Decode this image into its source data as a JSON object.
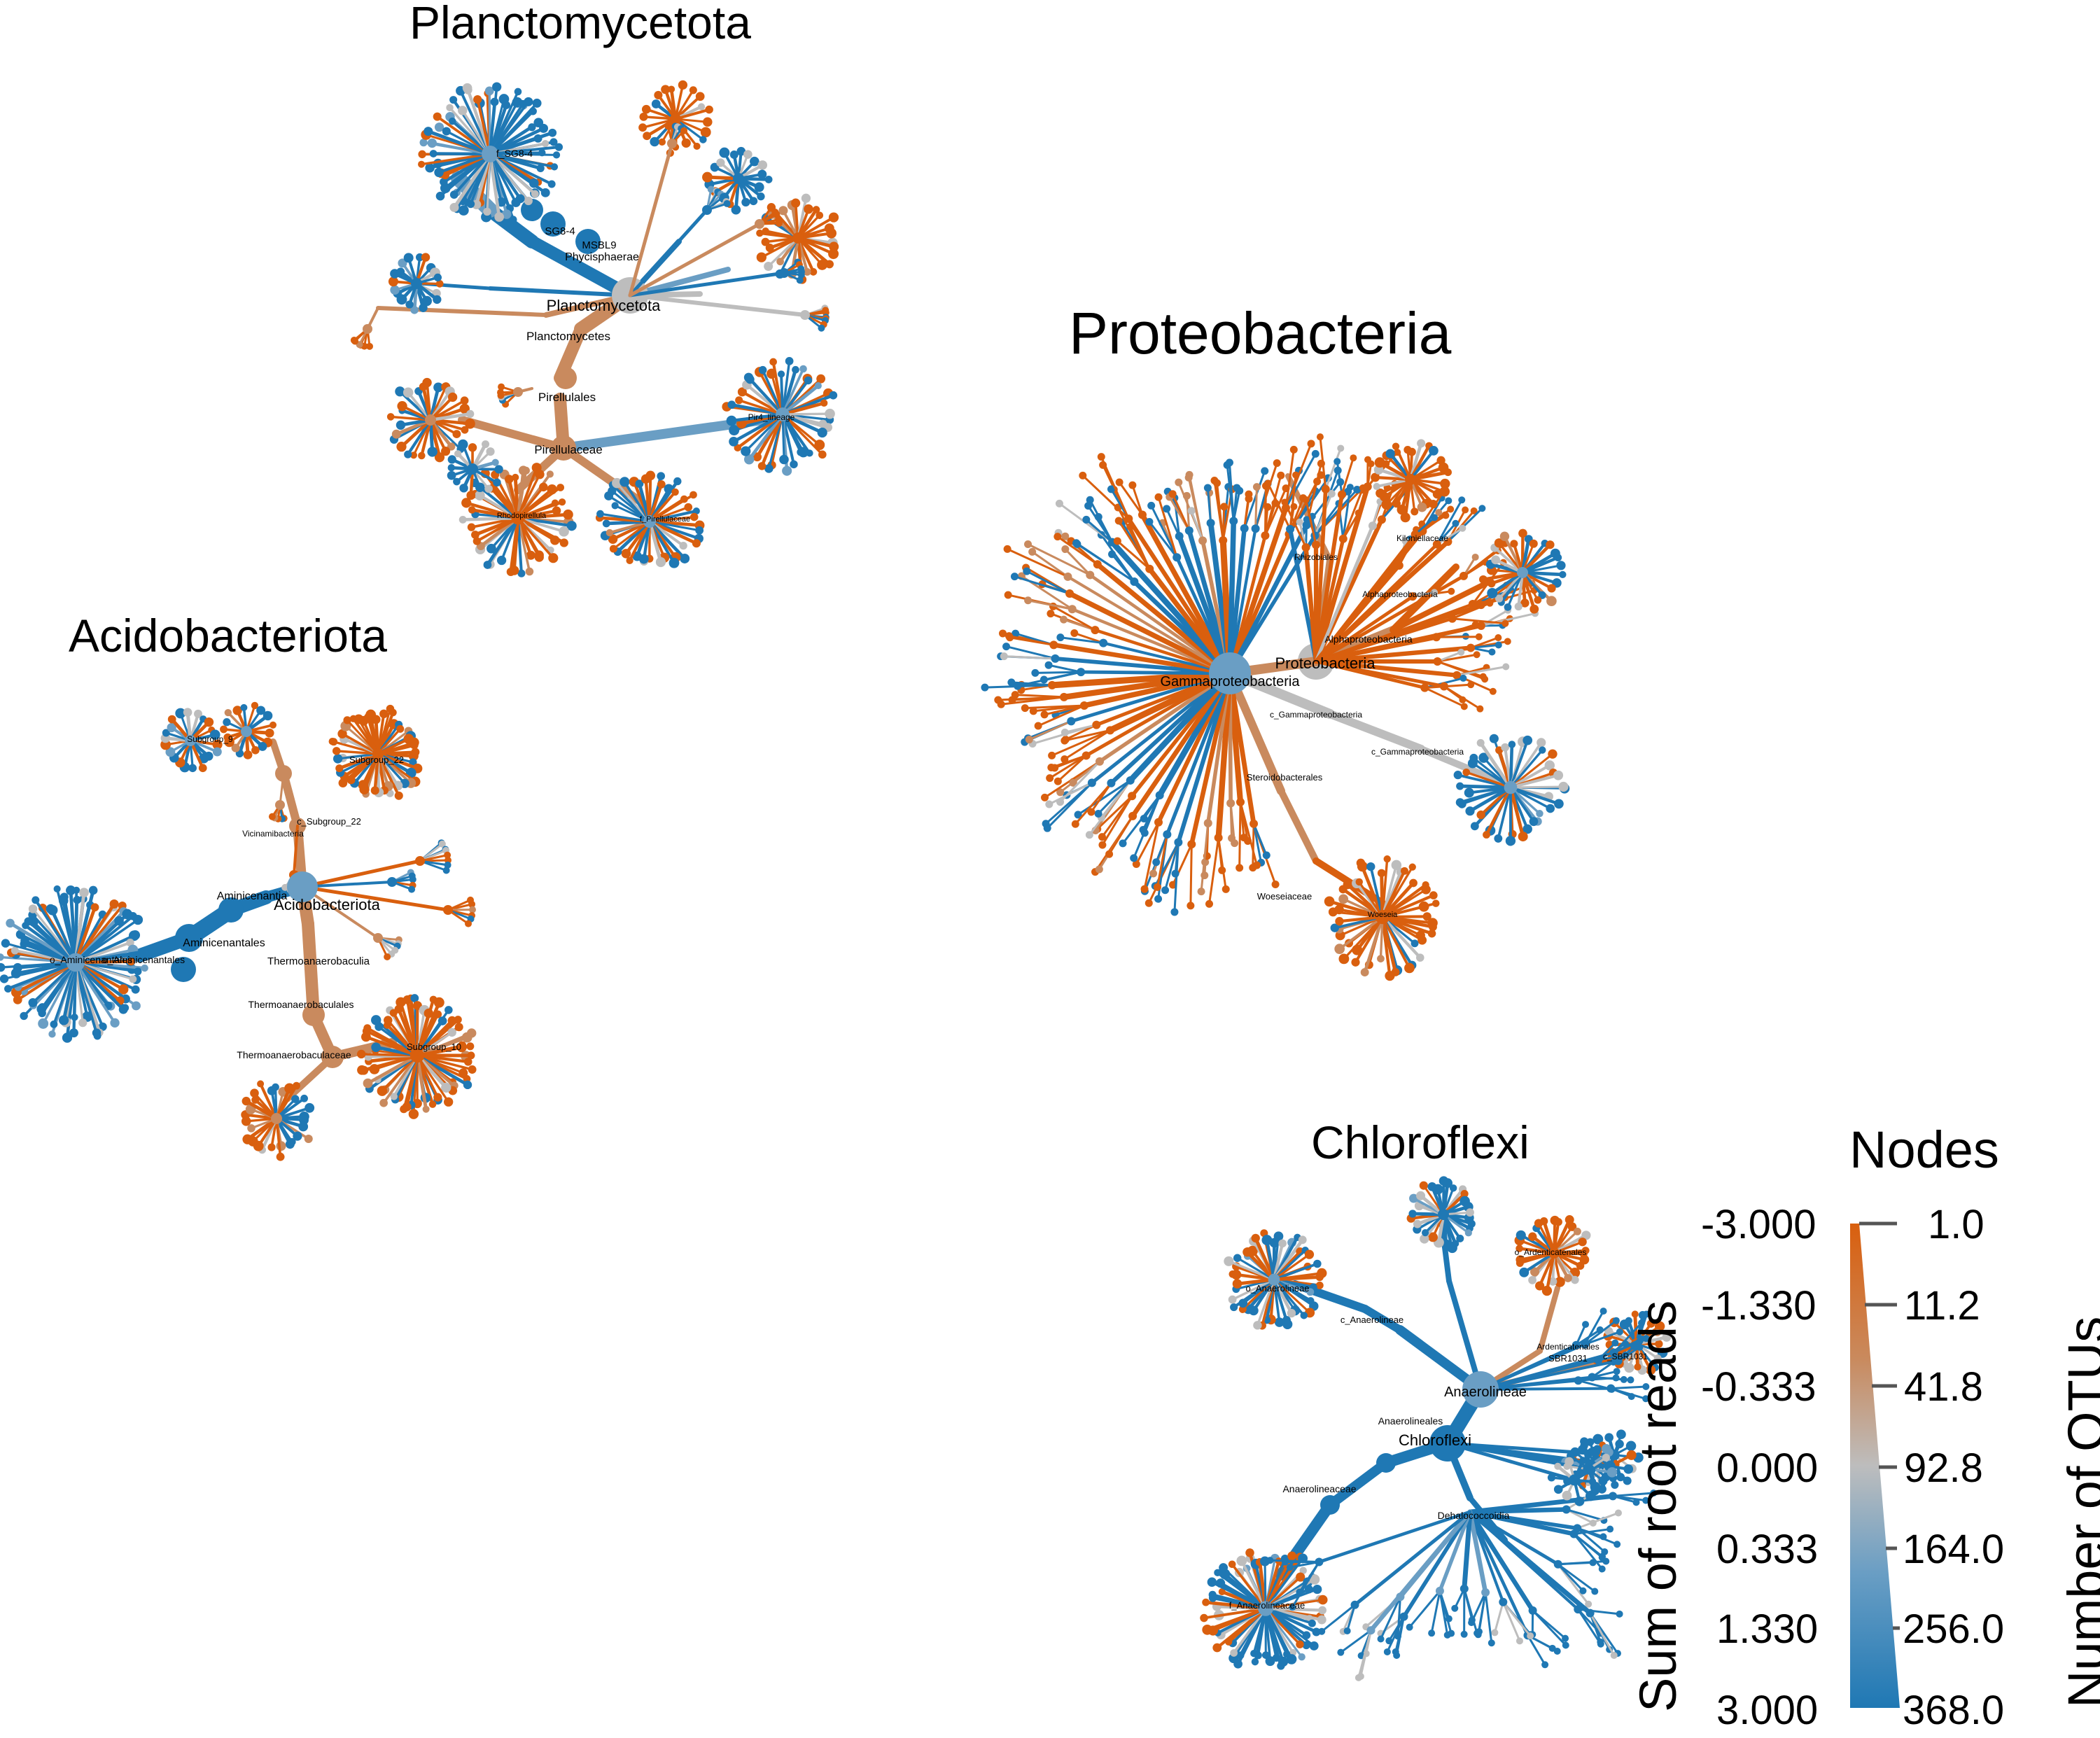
{
  "titles": {
    "planctomycetota": "Planctomycetota",
    "proteobacteria": "Proteobacteria",
    "acidobacteriota": "Acidobacteriota",
    "chloroflexi": "Chloroflexi"
  },
  "colors": {
    "orange": "#d95f0e",
    "blue": "#1f78b4",
    "grey": "#bdbdbd",
    "light_orange": "#c98a5e",
    "light_blue": "#6a9ec4"
  },
  "legend": {
    "nodes_title": "Nodes",
    "left_axis_title": "Sum of root reads",
    "right_axis_title": "Number of OTUs",
    "left_ticks": [
      "-3.000",
      "-1.330",
      "-0.333",
      "0.000",
      "0.333",
      "1.330",
      "3.000"
    ],
    "right_ticks": [
      "1.0",
      "11.2",
      "41.8",
      "92.8",
      "164.0",
      "256.0",
      "368.0"
    ]
  },
  "labels": {
    "planctomycetota": [
      "f_SG8-4",
      "SG8-4",
      "MSBL9",
      "Phycisphaerae",
      "Planctomycetota",
      "Planctomycetes",
      "Pirellulales",
      "Pirellulaceae",
      "Pir4_lineage",
      "Rhodopirellula",
      "f_Pirellulaceae"
    ],
    "proteobacteria": [
      "Proteobacteria",
      "Gammaproteobacteria",
      "Alphaproteobacteria",
      "c_Gammaproteobacteria",
      "Steroidobacterales",
      "Woeseiaceae",
      "Woeseia",
      "Kiloniellaceae",
      "Rhizobiales",
      "Alphaproteobacteria",
      "c_Gammaproteobacteria"
    ],
    "acidobacteriota": [
      "Acidobacteriota",
      "Aminicenantia",
      "Aminicenantales",
      "o_Aminicenantales",
      "o_Aminicenantales",
      "Thermoanaerobaculia",
      "Thermoanaerobaculales",
      "Thermoanaerobaculaceae",
      "Subgroup_10",
      "Subgroup_22",
      "c_Subgroup_22",
      "Vicinamibacteria",
      "Subgroup_9"
    ],
    "chloroflexi": [
      "Chloroflexi",
      "Anaerolineae",
      "Anaerolineales",
      "Anaerolineaceae",
      "f_Anaerolineaceae",
      "c_Anaerolineae",
      "o_Anaerolineae",
      "Dehalococcoidia",
      "c_SBR1031",
      "SBR1031",
      "Ardenticatenales",
      "o_Ardenticatenales"
    ]
  }
}
